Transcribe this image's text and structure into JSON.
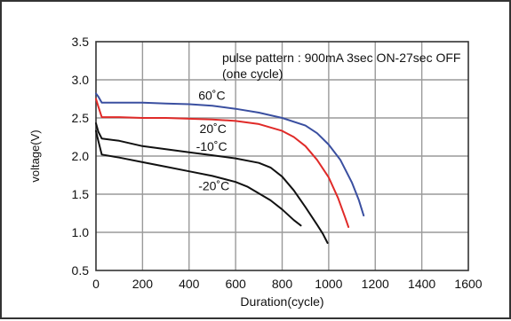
{
  "chart_data": {
    "type": "line",
    "title": "",
    "xlabel": "Duration(cycle)",
    "ylabel": "voltage(V)",
    "xlim": [
      0,
      1600
    ],
    "ylim": [
      0.5,
      3.5
    ],
    "xticks": [
      0,
      200,
      400,
      600,
      800,
      1000,
      1200,
      1400,
      1600
    ],
    "yticks": [
      0.5,
      1.0,
      1.5,
      2.0,
      2.5,
      3.0,
      3.5
    ],
    "xtick_labels": [
      "0",
      "200",
      "400",
      "600",
      "800",
      "1000",
      "1200",
      "1400",
      "1600"
    ],
    "ytick_labels": [
      "0.5",
      "1.0",
      "1.5",
      "2.0",
      "2.5",
      "3.0",
      "3.5"
    ],
    "grid": true,
    "annotation": [
      "pulse pattern : 900mA 3sec ON-27sec OFF",
      "(one cycle)"
    ],
    "series": [
      {
        "name": "60˚C",
        "color": "#3a4fa0",
        "x": [
          0,
          10,
          25,
          100,
          200,
          300,
          400,
          500,
          600,
          700,
          800,
          900,
          950,
          1000,
          1050,
          1100,
          1130,
          1150
        ],
        "y": [
          2.82,
          2.78,
          2.7,
          2.7,
          2.7,
          2.69,
          2.68,
          2.66,
          2.62,
          2.57,
          2.5,
          2.4,
          2.3,
          2.15,
          1.95,
          1.65,
          1.42,
          1.22
        ]
      },
      {
        "name": "20˚C",
        "color": "#e02a28",
        "x": [
          0,
          10,
          25,
          100,
          200,
          300,
          400,
          500,
          600,
          700,
          800,
          850,
          900,
          950,
          1000,
          1040,
          1070,
          1085
        ],
        "y": [
          2.75,
          2.65,
          2.51,
          2.51,
          2.5,
          2.5,
          2.49,
          2.48,
          2.46,
          2.42,
          2.33,
          2.25,
          2.13,
          1.95,
          1.72,
          1.45,
          1.2,
          1.07
        ]
      },
      {
        "name": "-10˚C",
        "color": "#111111",
        "x": [
          0,
          10,
          25,
          100,
          200,
          300,
          400,
          500,
          600,
          700,
          750,
          800,
          850,
          900,
          950,
          975,
          995
        ],
        "y": [
          2.43,
          2.32,
          2.23,
          2.2,
          2.13,
          2.09,
          2.05,
          2.01,
          1.97,
          1.91,
          1.85,
          1.73,
          1.55,
          1.33,
          1.1,
          0.98,
          0.86
        ]
      },
      {
        "name": "-20˚C",
        "color": "#111111",
        "x": [
          0,
          10,
          25,
          100,
          200,
          300,
          400,
          500,
          600,
          650,
          700,
          750,
          800,
          850,
          880
        ],
        "y": [
          2.33,
          2.2,
          2.02,
          1.98,
          1.92,
          1.86,
          1.8,
          1.74,
          1.66,
          1.6,
          1.51,
          1.42,
          1.3,
          1.16,
          1.09
        ]
      }
    ]
  }
}
